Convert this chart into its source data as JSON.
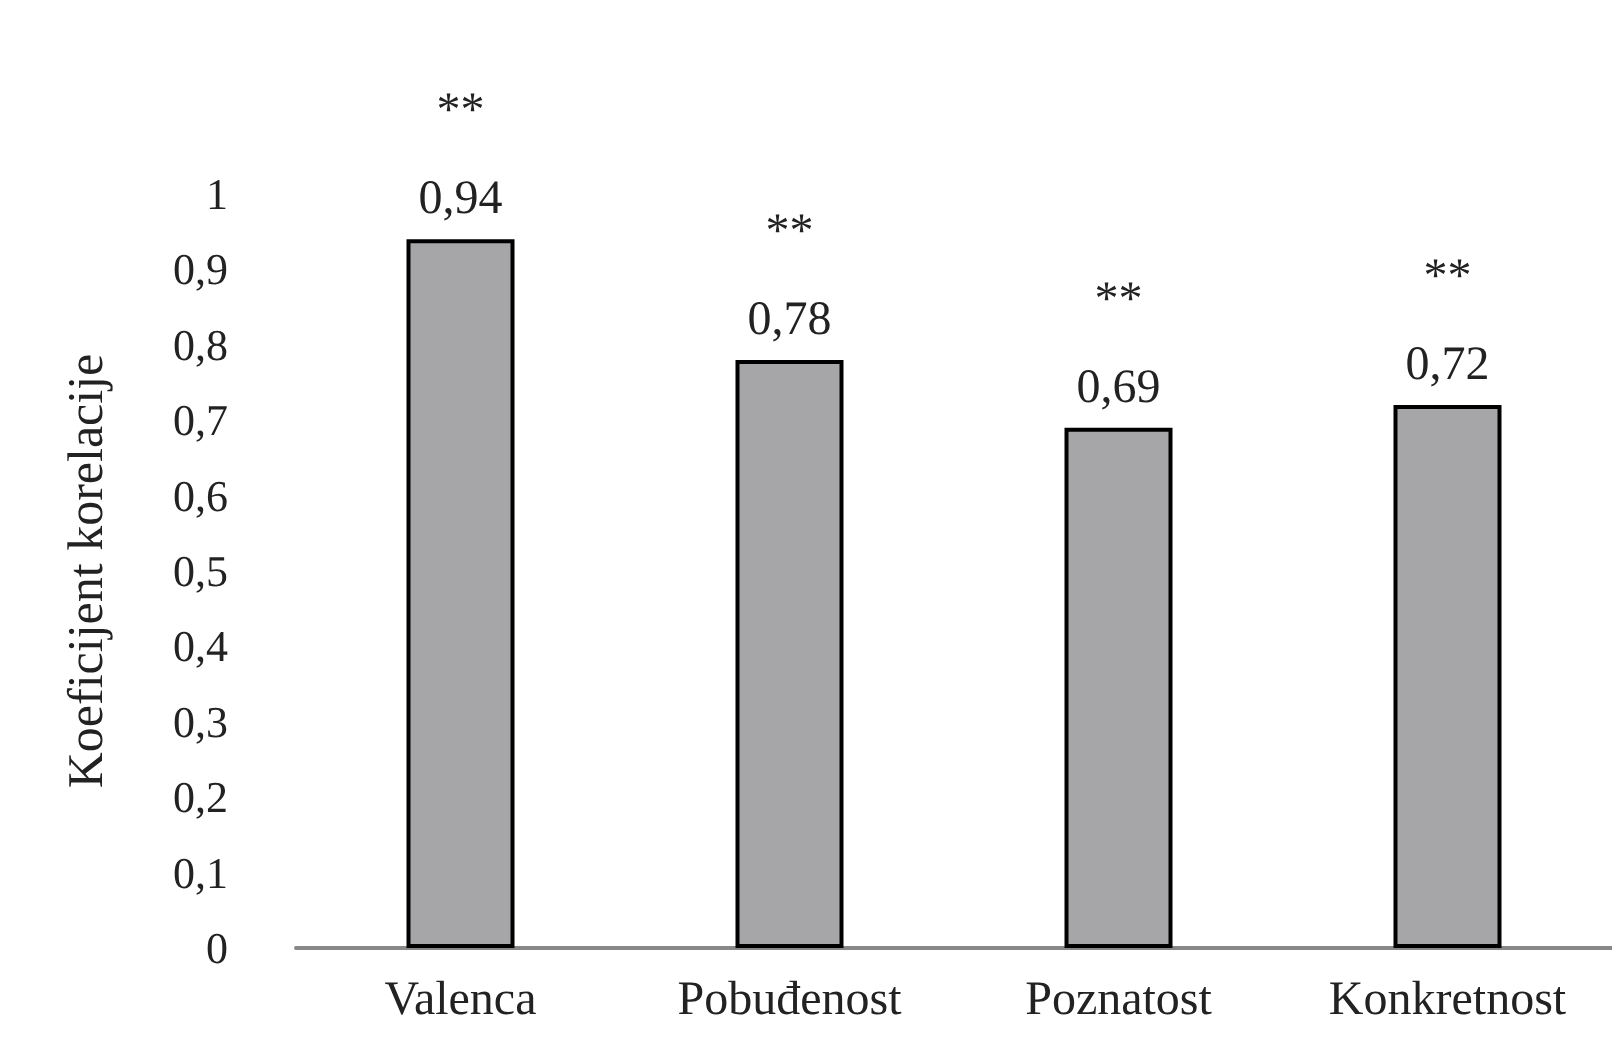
{
  "chart_data": {
    "type": "bar",
    "ylabel": "Koeficijent korelacije",
    "categories": [
      "Valenca",
      "Pobuđenost",
      "Poznatost",
      "Konkretnost"
    ],
    "values": [
      0.94,
      0.78,
      0.69,
      0.72
    ],
    "color": "#a6a6a8",
    "value_labels": [
      "0,94",
      "0,78",
      "0,69",
      "0,72"
    ],
    "ylim": [
      0,
      1
    ],
    "yticks": [
      {
        "value": 0,
        "label": "0"
      },
      {
        "value": 0.1,
        "label": "0,1"
      },
      {
        "value": 0.2,
        "label": "0,2"
      },
      {
        "value": 0.3,
        "label": "0,3"
      },
      {
        "value": 0.4,
        "label": "0,4"
      },
      {
        "value": 0.5,
        "label": "0,5"
      },
      {
        "value": 0.6,
        "label": "0,6"
      },
      {
        "value": 0.7,
        "label": "0,7"
      },
      {
        "value": 0.8,
        "label": "0,8"
      },
      {
        "value": 0.9,
        "label": "0,9"
      },
      {
        "value": 1,
        "label": "1"
      }
    ],
    "annotations": [
      {
        "text": "**",
        "x": "Valenca",
        "y": 0.94
      },
      {
        "text": "**",
        "x": "Pobuđenost",
        "y": 0.78
      },
      {
        "text": "**",
        "x": "Poznatost",
        "y": 0.69
      },
      {
        "text": "**",
        "x": "Konkretnost",
        "y": 0.72
      }
    ],
    "grid": false
  }
}
